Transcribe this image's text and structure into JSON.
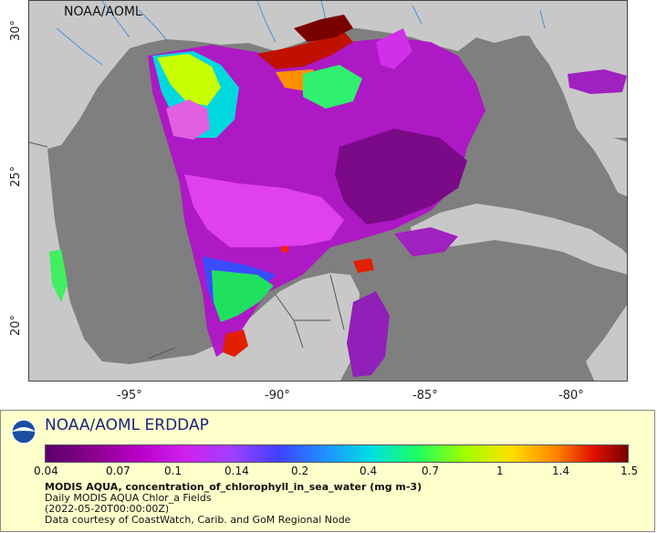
{
  "map": {
    "credit": "NOAA/AOML",
    "lon_ticks": [
      "-95°",
      "-90°",
      "-85°",
      "-80°"
    ],
    "lat_ticks": [
      "30°",
      "25°",
      "20°"
    ],
    "colors": {
      "ocean": "#7f7f7f",
      "land": "#c8c8c8",
      "river": "#4a90d9",
      "border": "#555555"
    }
  },
  "legend": {
    "title": "NOAA/AOML ERDDAP",
    "ticks": [
      "0.04",
      "0.07",
      "0.1",
      "0.14",
      "0.2",
      "0.4",
      "0.7",
      "1",
      "1.4",
      "1.5"
    ],
    "lines": [
      "MODIS AQUA, concentration_of_chlorophyll_in_sea_water (mg m-3)",
      "Daily MODIS AQUA Chlor_a Fields",
      "(2022-05-20T00:00:00Z)",
      "Data courtesy of CoastWatch, Carib. and GoM Regional Node"
    ]
  }
}
